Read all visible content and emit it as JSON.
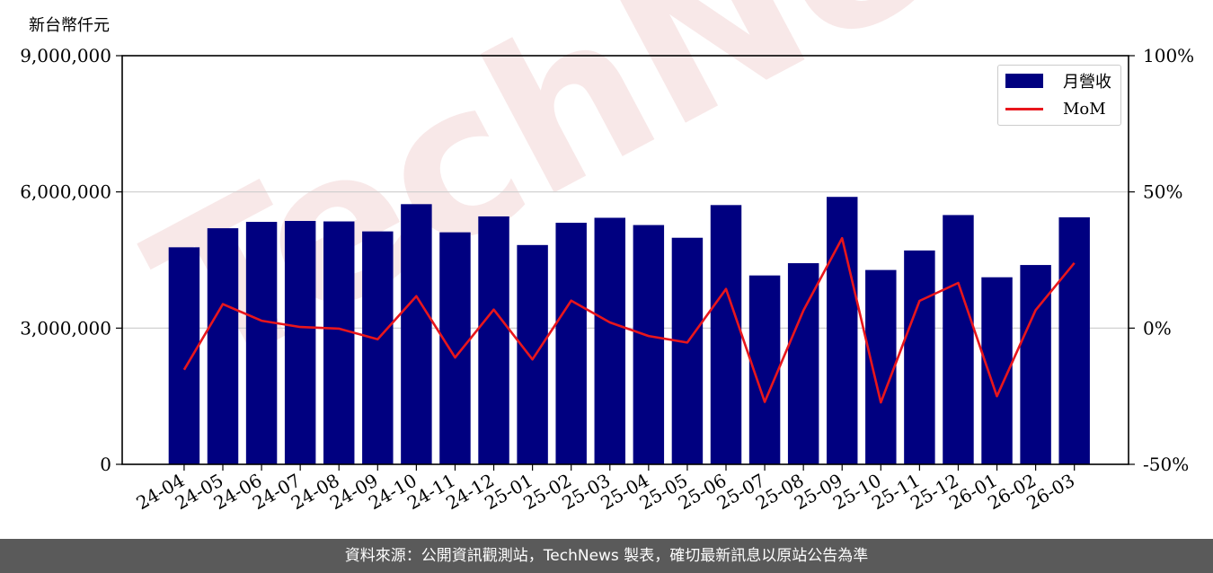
{
  "unit_label": "新台幣仟元",
  "footer_text": "資料來源：公開資訊觀測站，TechNews 製表，確切最新訊息以原站公告為準",
  "watermark_text": "TechNews",
  "colors": {
    "bar": "#000080",
    "line": "#e8161c",
    "footer_bg": "#5a5a5a"
  },
  "chart_data": {
    "type": "bar",
    "categories": [
      "24-04",
      "24-05",
      "24-06",
      "24-07",
      "24-08",
      "24-09",
      "24-10",
      "24-11",
      "24-12",
      "25-01",
      "25-02",
      "25-03",
      "25-04",
      "25-05",
      "25-06",
      "25-07",
      "25-08",
      "25-09",
      "25-10",
      "25-11",
      "25-12",
      "26-01",
      "26-02",
      "26-03"
    ],
    "series": [
      {
        "name": "月營收",
        "axis": "left",
        "type": "bar",
        "values": [
          4780000,
          5200000,
          5340000,
          5360000,
          5350000,
          5130000,
          5730000,
          5110000,
          5460000,
          4830000,
          5320000,
          5430000,
          5270000,
          4990000,
          5710000,
          4160000,
          4430000,
          5890000,
          4280000,
          4710000,
          5490000,
          4120000,
          4390000,
          5440000
        ]
      },
      {
        "name": "MoM",
        "axis": "right",
        "type": "line",
        "values": [
          -15.3,
          8.8,
          2.7,
          0.4,
          -0.2,
          -4.1,
          11.7,
          -10.8,
          6.8,
          -11.5,
          10.1,
          2.1,
          -2.9,
          -5.3,
          14.4,
          -27.1,
          6.5,
          33.0,
          -27.3,
          10.0,
          16.6,
          -25.0,
          6.6,
          23.9
        ]
      }
    ],
    "left_axis": {
      "ylim": [
        0,
        9000000
      ],
      "ticks": [
        "0",
        "3,000,000",
        "6,000,000",
        "9,000,000"
      ]
    },
    "right_axis": {
      "ylim": [
        -50,
        100
      ],
      "ticks": [
        "-50%",
        "0%",
        "50%",
        "100%"
      ]
    },
    "grid": true,
    "legend_position": "top-right"
  }
}
